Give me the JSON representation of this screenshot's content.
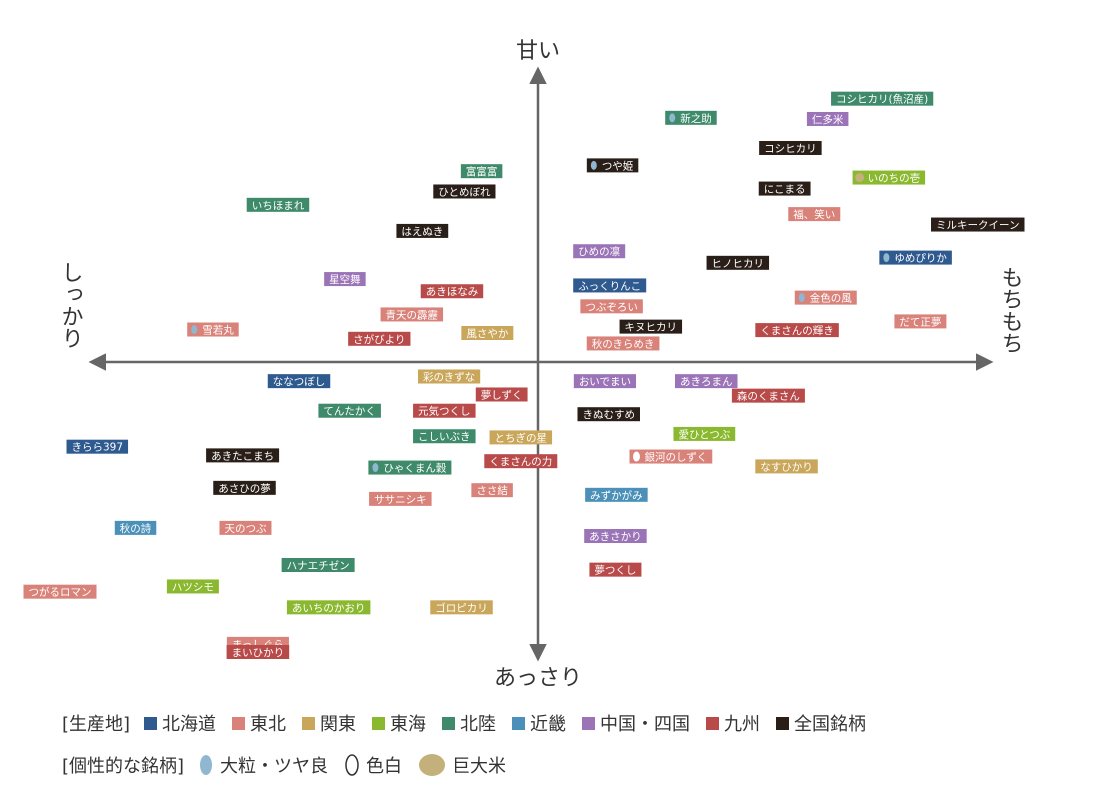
{
  "chart_data": {
    "type": "scatter",
    "axes": {
      "top": "甘い",
      "bottom": "あっさり",
      "left": "しっかり",
      "right": "もちもち"
    },
    "xlim": [
      -5,
      5
    ],
    "ylim": [
      -5,
      5
    ],
    "regions": {
      "hokkaido": {
        "label": "北海道",
        "color": "#2f5a8f"
      },
      "tohoku": {
        "label": "東北",
        "color": "#d9827a"
      },
      "kanto": {
        "label": "関東",
        "color": "#c9a65a"
      },
      "tokai": {
        "label": "東海",
        "color": "#8ab82e"
      },
      "hokuriku": {
        "label": "北陸",
        "color": "#3e8a6a"
      },
      "kinki": {
        "label": "近畿",
        "color": "#4a90b8"
      },
      "chugoku": {
        "label": "中国・四国",
        "color": "#9b74b8"
      },
      "kyushu": {
        "label": "九州",
        "color": "#b84a4a"
      },
      "national": {
        "label": "全国銘柄",
        "color": "#2a1e18"
      }
    },
    "points": [
      {
        "label": "コシヒカリ(魚沼産)",
        "region": "hokuriku",
        "x": 3.6,
        "y": 4.54
      },
      {
        "label": "新之助",
        "region": "hokuriku",
        "x": 1.6,
        "y": 4.21,
        "mark": "large"
      },
      {
        "label": "仁多米",
        "region": "chugoku",
        "x": 3.03,
        "y": 4.19
      },
      {
        "label": "コシヒカリ",
        "region": "national",
        "x": 2.64,
        "y": 3.69
      },
      {
        "label": "つや姫",
        "region": "national",
        "x": 0.78,
        "y": 3.39,
        "mark": "large"
      },
      {
        "label": "富富富",
        "region": "hokuriku",
        "x": -0.59,
        "y": 3.29
      },
      {
        "label": "いのちの壱",
        "region": "tokai",
        "x": 3.67,
        "y": 3.18,
        "mark": "giant"
      },
      {
        "label": "ひとめぼれ",
        "region": "national",
        "x": -0.77,
        "y": 2.94
      },
      {
        "label": "にこまる",
        "region": "national",
        "x": 2.58,
        "y": 2.99
      },
      {
        "label": "いちほまれ",
        "region": "hokuriku",
        "x": -2.72,
        "y": 2.71
      },
      {
        "label": "福、笑い",
        "region": "tohoku",
        "x": 2.89,
        "y": 2.55
      },
      {
        "label": "はえぬき",
        "region": "national",
        "x": -1.21,
        "y": 2.26
      },
      {
        "label": "ミルキークイーン",
        "region": "national",
        "x": 4.6,
        "y": 2.37
      },
      {
        "label": "ひめの凛",
        "region": "chugoku",
        "x": 0.64,
        "y": 1.91
      },
      {
        "label": "ゆめぴりか",
        "region": "hokkaido",
        "x": 3.95,
        "y": 1.8,
        "mark": "large"
      },
      {
        "label": "ヒノヒカリ",
        "region": "national",
        "x": 2.09,
        "y": 1.71
      },
      {
        "label": "星空舞",
        "region": "chugoku",
        "x": -2.02,
        "y": 1.43
      },
      {
        "label": "ふっくりんこ",
        "region": "hokkaido",
        "x": 0.75,
        "y": 1.32
      },
      {
        "label": "あきほなみ",
        "region": "kyushu",
        "x": -0.9,
        "y": 1.22
      },
      {
        "label": "金色の風",
        "region": "tohoku",
        "x": 3.01,
        "y": 1.11,
        "mark": "large"
      },
      {
        "label": "つぶぞろい",
        "region": "tohoku",
        "x": 0.77,
        "y": 0.96
      },
      {
        "label": "青天の霹靂",
        "region": "tohoku",
        "x": -1.32,
        "y": 0.82
      },
      {
        "label": "だて正夢",
        "region": "tohoku",
        "x": 4.0,
        "y": 0.7
      },
      {
        "label": "雪若丸",
        "region": "tohoku",
        "x": -3.4,
        "y": 0.56,
        "mark": "large"
      },
      {
        "label": "キヌヒカリ",
        "region": "national",
        "x": 1.18,
        "y": 0.61
      },
      {
        "label": "くまさんの輝き",
        "region": "kyushu",
        "x": 2.71,
        "y": 0.55
      },
      {
        "label": "風さやか",
        "region": "kanto",
        "x": -0.53,
        "y": 0.5
      },
      {
        "label": "さがびより",
        "region": "kyushu",
        "x": -1.66,
        "y": 0.4
      },
      {
        "label": "秋のきらめき",
        "region": "tohoku",
        "x": 0.89,
        "y": 0.32
      },
      {
        "label": "彩のきずな",
        "region": "kanto",
        "x": -0.93,
        "y": -0.25
      },
      {
        "label": "ななつぼし",
        "region": "hokkaido",
        "x": -2.5,
        "y": -0.33
      },
      {
        "label": "おいでまい",
        "region": "chugoku",
        "x": 0.7,
        "y": -0.33
      },
      {
        "label": "あきろまん",
        "region": "chugoku",
        "x": 1.76,
        "y": -0.33
      },
      {
        "label": "夢しずく",
        "region": "kyushu",
        "x": -0.38,
        "y": -0.56
      },
      {
        "label": "森のくまさん",
        "region": "kyushu",
        "x": 2.41,
        "y": -0.58
      },
      {
        "label": "てんたかく",
        "region": "hokuriku",
        "x": -1.97,
        "y": -0.84
      },
      {
        "label": "元気つくし",
        "region": "kyushu",
        "x": -0.98,
        "y": -0.84
      },
      {
        "label": "きぬむすめ",
        "region": "national",
        "x": 0.74,
        "y": -0.9
      },
      {
        "label": "こしいぶき",
        "region": "hokuriku",
        "x": -0.98,
        "y": -1.28
      },
      {
        "label": "とちぎの星",
        "region": "kanto",
        "x": -0.18,
        "y": -1.3
      },
      {
        "label": "愛ひとつぶ",
        "region": "tokai",
        "x": 1.74,
        "y": -1.24
      },
      {
        "label": "きらら397",
        "region": "hokkaido",
        "x": -4.61,
        "y": -1.46
      },
      {
        "label": "あきたこまち",
        "region": "national",
        "x": -3.09,
        "y": -1.61
      },
      {
        "label": "くまさんの力",
        "region": "kyushu",
        "x": -0.18,
        "y": -1.71
      },
      {
        "label": "銀河のしずく",
        "region": "tohoku",
        "x": 1.39,
        "y": -1.63,
        "mark": "white"
      },
      {
        "label": "ひゃくまん穀",
        "region": "hokuriku",
        "x": -1.34,
        "y": -1.82,
        "mark": "large"
      },
      {
        "label": "なすひかり",
        "region": "kanto",
        "x": 2.6,
        "y": -1.8
      },
      {
        "label": "あさひの夢",
        "region": "national",
        "x": -3.07,
        "y": -2.17
      },
      {
        "label": "ささ結",
        "region": "tohoku",
        "x": -0.48,
        "y": -2.21
      },
      {
        "label": "ササニシキ",
        "region": "tohoku",
        "x": -1.44,
        "y": -2.36
      },
      {
        "label": "みずかがみ",
        "region": "kinki",
        "x": 0.82,
        "y": -2.29
      },
      {
        "label": "秋の詩",
        "region": "kinki",
        "x": -4.21,
        "y": -2.86
      },
      {
        "label": "天のつぶ",
        "region": "tohoku",
        "x": -3.06,
        "y": -2.86
      },
      {
        "label": "あきさかり",
        "region": "chugoku",
        "x": 0.81,
        "y": -3.0
      },
      {
        "label": "ハナエチゼン",
        "region": "hokuriku",
        "x": -2.3,
        "y": -3.5
      },
      {
        "label": "夢つくし",
        "region": "kyushu",
        "x": 0.81,
        "y": -3.58
      },
      {
        "label": "ハツシモ",
        "region": "tokai",
        "x": -3.61,
        "y": -3.87
      },
      {
        "label": "つがるロマン",
        "region": "tohoku",
        "x": -5.0,
        "y": -3.96
      },
      {
        "label": "あいちのかおり",
        "region": "tokai",
        "x": -2.19,
        "y": -4.23
      },
      {
        "label": "ゴロピカリ",
        "region": "kanto",
        "x": -0.8,
        "y": -4.23
      },
      {
        "label": "まっしぐら",
        "region": "tohoku",
        "x": -2.93,
        "y": -4.86
      },
      {
        "label": "ふさこがね",
        "region": "kanto",
        "x": -2.93,
        "y": -5.0
      },
      {
        "label": "まいひかり",
        "region": "kyushu",
        "x": -2.93,
        "y": -5.0
      }
    ]
  },
  "legend": {
    "region_heading": "[生産地]",
    "region_order": [
      "hokkaido",
      "tohoku",
      "kanto",
      "tokai",
      "hokuriku",
      "kinki",
      "chugoku",
      "kyushu",
      "national"
    ],
    "trait_heading": "[個性的な銘柄]",
    "traits": [
      {
        "key": "large",
        "label": "大粒・ツヤ良",
        "color": "#8fb7cf"
      },
      {
        "key": "white",
        "label": "色白",
        "color": "#ffffff"
      },
      {
        "key": "giant",
        "label": "巨大米",
        "color": "#c4b07a"
      }
    ]
  }
}
